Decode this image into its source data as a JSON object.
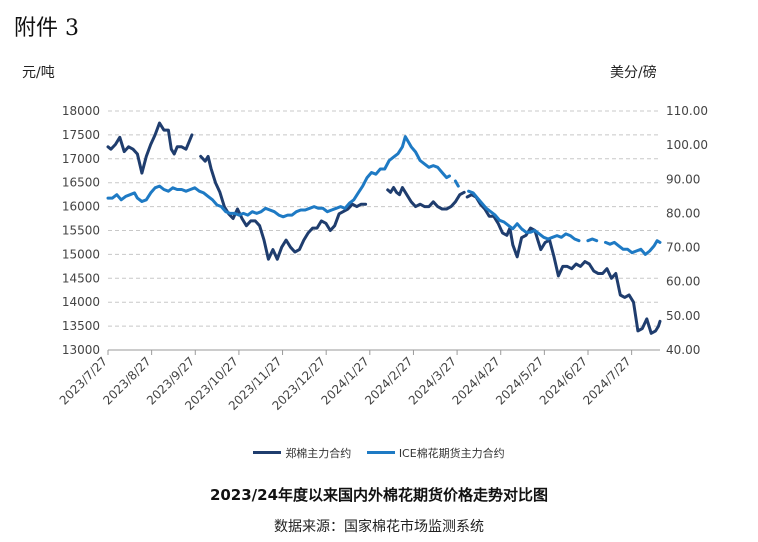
{
  "header": {
    "attachment_label": "附件 3"
  },
  "chart_data": {
    "type": "line",
    "title": "2023/24年度以来国内外棉花期货价格走势对比图",
    "source": "数据来源：国家棉花市场监测系统",
    "y_left": {
      "unit": "元/吨",
      "ticks": [
        "13000",
        "13500",
        "14000",
        "14500",
        "15000",
        "15500",
        "16000",
        "16500",
        "17000",
        "17500",
        "18000"
      ],
      "lim": [
        13000,
        18000
      ]
    },
    "y_right": {
      "unit": "美分/磅",
      "ticks": [
        "40.00",
        "50.00",
        "60.00",
        "70.00",
        "80.00",
        "90.00",
        "100.00",
        "110.00"
      ],
      "lim": [
        40,
        110
      ]
    },
    "x_ticks": [
      "2023/7/27",
      "2023/8/27",
      "2023/9/27",
      "2023/10/27",
      "2023/11/27",
      "2023/12/27",
      "2024/1/27",
      "2024/2/27",
      "2024/3/27",
      "2024/4/27",
      "2024/5/27",
      "2024/6/27",
      "2024/7/27"
    ],
    "grid": "horizontal-dashed",
    "legend_position": "bottom",
    "series": [
      {
        "name": "郑棉主力合约",
        "axis": "left",
        "color": "#1f3d6e",
        "points": [
          [
            0,
            17250
          ],
          [
            2,
            17200
          ],
          [
            5,
            17300
          ],
          [
            8,
            17450
          ],
          [
            11,
            17150
          ],
          [
            14,
            17250
          ],
          [
            17,
            17200
          ],
          [
            20,
            17100
          ],
          [
            23,
            16700
          ],
          [
            26,
            17050
          ],
          [
            29,
            17300
          ],
          [
            32,
            17500
          ],
          [
            35,
            17750
          ],
          [
            38,
            17600
          ],
          [
            41,
            17600
          ],
          [
            43,
            17200
          ],
          [
            45,
            17100
          ],
          [
            47,
            17250
          ],
          [
            50,
            17250
          ],
          [
            53,
            17200
          ],
          [
            55,
            17350
          ],
          [
            57,
            17500
          ],
          [
            null,
            null
          ],
          [
            63,
            17050
          ],
          [
            66,
            16950
          ],
          [
            68,
            17050
          ],
          [
            70,
            16800
          ],
          [
            73,
            16500
          ],
          [
            76,
            16300
          ],
          [
            79,
            16000
          ],
          [
            82,
            15850
          ],
          [
            85,
            15750
          ],
          [
            88,
            15950
          ],
          [
            91,
            15750
          ],
          [
            94,
            15600
          ],
          [
            97,
            15700
          ],
          [
            100,
            15700
          ],
          [
            103,
            15600
          ],
          [
            106,
            15300
          ],
          [
            109,
            14900
          ],
          [
            112,
            15100
          ],
          [
            115,
            14900
          ],
          [
            118,
            15150
          ],
          [
            121,
            15300
          ],
          [
            124,
            15150
          ],
          [
            127,
            15050
          ],
          [
            130,
            15100
          ],
          [
            133,
            15300
          ],
          [
            136,
            15450
          ],
          [
            139,
            15550
          ],
          [
            142,
            15550
          ],
          [
            145,
            15700
          ],
          [
            148,
            15650
          ],
          [
            151,
            15500
          ],
          [
            154,
            15600
          ],
          [
            157,
            15850
          ],
          [
            160,
            15900
          ],
          [
            163,
            15950
          ],
          [
            166,
            16050
          ],
          [
            169,
            16000
          ],
          [
            172,
            16050
          ],
          [
            175,
            16050
          ],
          [
            null,
            null
          ],
          [
            190,
            16350
          ],
          [
            192,
            16300
          ],
          [
            194,
            16400
          ],
          [
            196,
            16300
          ],
          [
            198,
            16250
          ],
          [
            200,
            16400
          ],
          [
            203,
            16250
          ],
          [
            206,
            16100
          ],
          [
            209,
            16000
          ],
          [
            212,
            16050
          ],
          [
            215,
            16000
          ],
          [
            218,
            16000
          ],
          [
            221,
            16100
          ],
          [
            224,
            16000
          ],
          [
            227,
            15950
          ],
          [
            230,
            15950
          ],
          [
            233,
            16000
          ],
          [
            236,
            16100
          ],
          [
            239,
            16250
          ],
          [
            242,
            16300
          ],
          [
            null,
            null
          ],
          [
            244,
            16200
          ],
          [
            247,
            16250
          ],
          [
            250,
            16200
          ],
          [
            253,
            16050
          ],
          [
            256,
            15950
          ],
          [
            259,
            15800
          ],
          [
            262,
            15800
          ],
          [
            265,
            15650
          ],
          [
            268,
            15450
          ],
          [
            271,
            15400
          ],
          [
            273,
            15550
          ],
          [
            275,
            15200
          ],
          [
            278,
            14950
          ],
          [
            281,
            15350
          ],
          [
            284,
            15400
          ],
          [
            287,
            15550
          ],
          [
            290,
            15500
          ],
          [
            292,
            15300
          ],
          [
            294,
            15100
          ],
          [
            297,
            15250
          ],
          [
            300,
            15300
          ],
          [
            303,
            14950
          ],
          [
            306,
            14550
          ],
          [
            309,
            14750
          ],
          [
            312,
            14750
          ],
          [
            315,
            14700
          ],
          [
            318,
            14800
          ],
          [
            321,
            14750
          ],
          [
            324,
            14850
          ],
          [
            327,
            14800
          ],
          [
            330,
            14650
          ],
          [
            333,
            14600
          ],
          [
            336,
            14600
          ],
          [
            339,
            14700
          ],
          [
            342,
            14500
          ],
          [
            345,
            14600
          ],
          [
            348,
            14150
          ],
          [
            351,
            14100
          ],
          [
            354,
            14150
          ],
          [
            357,
            14000
          ],
          [
            360,
            13400
          ],
          [
            363,
            13450
          ],
          [
            366,
            13650
          ],
          [
            369,
            13350
          ],
          [
            372,
            13400
          ],
          [
            374,
            13500
          ],
          [
            375,
            13600
          ]
        ]
      },
      {
        "name": "ICE棉花期货主力合约",
        "axis": "right",
        "color": "#1e7ac4",
        "points": [
          [
            0,
            84.5
          ],
          [
            3,
            84.5
          ],
          [
            6,
            85.5
          ],
          [
            9,
            84.0
          ],
          [
            12,
            85.0
          ],
          [
            15,
            85.5
          ],
          [
            18,
            86.0
          ],
          [
            20,
            84.5
          ],
          [
            23,
            83.5
          ],
          [
            26,
            84.0
          ],
          [
            29,
            86.0
          ],
          [
            32,
            87.5
          ],
          [
            35,
            88.0
          ],
          [
            38,
            87.0
          ],
          [
            41,
            86.5
          ],
          [
            44,
            87.5
          ],
          [
            47,
            87.0
          ],
          [
            50,
            87.0
          ],
          [
            53,
            86.5
          ],
          [
            56,
            87.0
          ],
          [
            59,
            87.5
          ],
          [
            62,
            86.5
          ],
          [
            65,
            86.0
          ],
          [
            68,
            85.0
          ],
          [
            71,
            84.0
          ],
          [
            74,
            82.5
          ],
          [
            77,
            82.0
          ],
          [
            80,
            80.5
          ],
          [
            83,
            80.0
          ],
          [
            86,
            80.0
          ],
          [
            89,
            79.5
          ],
          [
            92,
            80.0
          ],
          [
            95,
            79.5
          ],
          [
            98,
            80.5
          ],
          [
            101,
            80.0
          ],
          [
            104,
            80.5
          ],
          [
            107,
            81.5
          ],
          [
            110,
            81.0
          ],
          [
            113,
            80.5
          ],
          [
            116,
            79.5
          ],
          [
            119,
            79.0
          ],
          [
            122,
            79.5
          ],
          [
            125,
            79.5
          ],
          [
            128,
            80.5
          ],
          [
            131,
            81.0
          ],
          [
            134,
            81.0
          ],
          [
            137,
            81.5
          ],
          [
            140,
            82.0
          ],
          [
            143,
            81.5
          ],
          [
            146,
            81.5
          ],
          [
            149,
            80.5
          ],
          [
            152,
            81.0
          ],
          [
            155,
            81.5
          ],
          [
            158,
            82.0
          ],
          [
            161,
            81.5
          ],
          [
            164,
            83.0
          ],
          [
            167,
            84.0
          ],
          [
            170,
            86.0
          ],
          [
            173,
            88.0
          ],
          [
            176,
            90.5
          ],
          [
            179,
            92.0
          ],
          [
            182,
            91.5
          ],
          [
            185,
            93.0
          ],
          [
            188,
            93.0
          ],
          [
            191,
            95.5
          ],
          [
            194,
            96.5
          ],
          [
            197,
            97.5
          ],
          [
            200,
            99.5
          ],
          [
            202,
            102.5
          ],
          [
            204,
            101.0
          ],
          [
            206,
            99.5
          ],
          [
            209,
            98.0
          ],
          [
            212,
            95.5
          ],
          [
            215,
            94.5
          ],
          [
            218,
            93.5
          ],
          [
            221,
            94.0
          ],
          [
            224,
            93.5
          ],
          [
            227,
            92.0
          ],
          [
            230,
            90.5
          ],
          [
            232,
            91.0
          ],
          [
            null,
            null
          ],
          [
            236,
            89.5
          ],
          [
            238,
            88.0
          ],
          [
            null,
            null
          ],
          [
            245,
            86.5
          ],
          [
            248,
            86.0
          ],
          [
            251,
            84.5
          ],
          [
            254,
            83.0
          ],
          [
            257,
            81.5
          ],
          [
            260,
            80.5
          ],
          [
            263,
            79.5
          ],
          [
            266,
            78.0
          ],
          [
            269,
            77.5
          ],
          [
            272,
            76.5
          ],
          [
            275,
            75.5
          ],
          [
            278,
            77.0
          ],
          [
            281,
            75.5
          ],
          [
            284,
            74.5
          ],
          [
            287,
            74.5
          ],
          [
            290,
            75.0
          ],
          [
            293,
            74.0
          ],
          [
            296,
            73.0
          ],
          [
            299,
            72.5
          ],
          [
            302,
            73.0
          ],
          [
            305,
            73.5
          ],
          [
            308,
            73.0
          ],
          [
            311,
            74.0
          ],
          [
            314,
            73.5
          ],
          [
            317,
            72.5
          ],
          [
            320,
            72.0
          ],
          [
            null,
            null
          ],
          [
            326,
            72.0
          ],
          [
            329,
            72.5
          ],
          [
            332,
            72.0
          ],
          [
            null,
            null
          ],
          [
            338,
            71.5
          ],
          [
            341,
            71.0
          ],
          [
            344,
            71.5
          ],
          [
            347,
            70.5
          ],
          [
            350,
            69.5
          ],
          [
            353,
            69.5
          ],
          [
            356,
            68.5
          ],
          [
            359,
            69.0
          ],
          [
            362,
            69.5
          ],
          [
            365,
            68.0
          ],
          [
            368,
            69.0
          ],
          [
            371,
            70.5
          ],
          [
            373,
            72.0
          ],
          [
            375,
            71.5
          ]
        ]
      }
    ]
  }
}
